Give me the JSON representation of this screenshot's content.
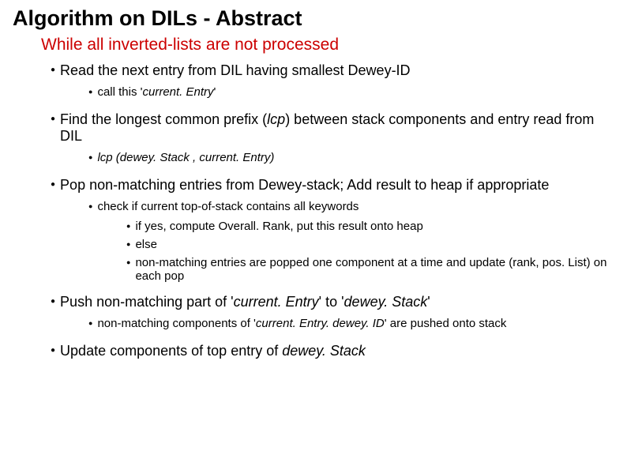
{
  "colors": {
    "title": "#000000",
    "while": "#cc0000",
    "body": "#000000",
    "background": "#ffffff"
  },
  "title": "Algorithm on DILs - Abstract",
  "while_line": "While all inverted-lists are not processed",
  "step1": {
    "text": "Read the next entry from DIL having smallest Dewey-ID",
    "sub1_prefix": "call this '",
    "sub1_italic": "current. Entry",
    "sub1_suffix": "'"
  },
  "step2": {
    "prefix": "Find the longest common prefix (",
    "italic1": "lcp",
    "mid": ") between stack components and entry read from DIL",
    "sub1_italic": "lcp (dewey. Stack , current. Entry)"
  },
  "step3": {
    "text": "Pop non-matching entries from Dewey-stack; Add result to heap if appropriate",
    "sub1": "check if current top-of-stack contains all keywords",
    "sub1_a": "if yes, compute Overall. Rank, put this result onto heap",
    "sub1_b": "else",
    "sub1_c": "non-matching entries are popped one component at a time and update (rank, pos. List) on each pop"
  },
  "step4": {
    "prefix": "Push non-matching part of '",
    "italic1": "current. Entry",
    "mid": "'  to '",
    "italic2": "dewey. Stack",
    "suffix": "'",
    "sub1_prefix": "non-matching components of '",
    "sub1_italic": "current. Entry. dewey. ID",
    "sub1_suffix": "' are pushed onto stack"
  },
  "step5": {
    "prefix": "Update components of top entry of ",
    "italic": "dewey. Stack"
  }
}
